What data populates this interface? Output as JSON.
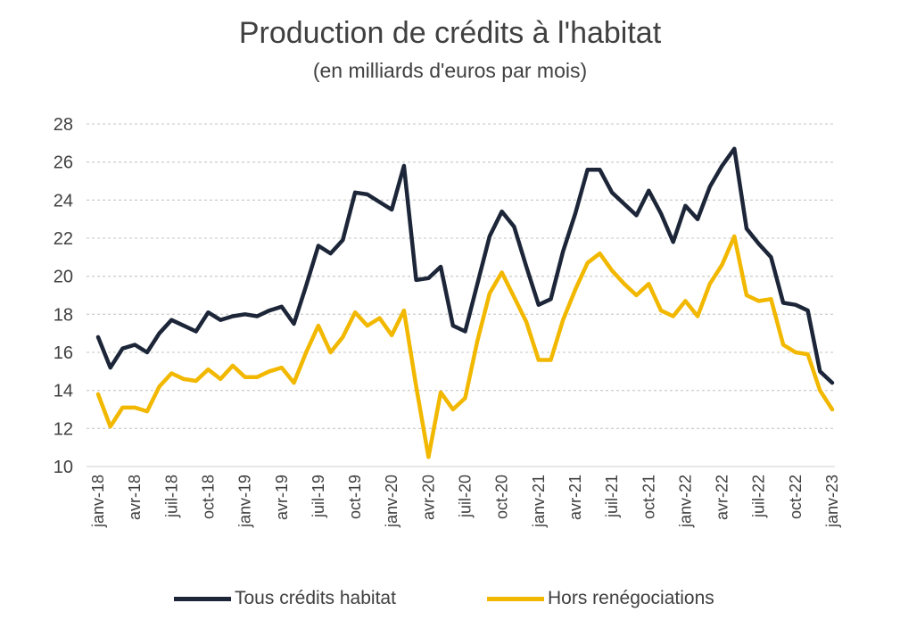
{
  "chart_data": {
    "type": "line",
    "title": "Production de crédits à l'habitat",
    "subtitle": "(en milliards d'euros par mois)",
    "xlabel": "",
    "ylabel": "",
    "ylim": [
      10,
      28
    ],
    "yticks": [
      10,
      12,
      14,
      16,
      18,
      20,
      22,
      24,
      26,
      28
    ],
    "grid": "horizontal dotted",
    "legend_position": "bottom",
    "x_tick_labels": [
      {
        "index": 0,
        "label": "janv-18"
      },
      {
        "index": 3,
        "label": "avr-18"
      },
      {
        "index": 6,
        "label": "juil-18"
      },
      {
        "index": 9,
        "label": "oct-18"
      },
      {
        "index": 12,
        "label": "janv-19"
      },
      {
        "index": 15,
        "label": "avr-19"
      },
      {
        "index": 18,
        "label": "juil-19"
      },
      {
        "index": 21,
        "label": "oct-19"
      },
      {
        "index": 24,
        "label": "janv-20"
      },
      {
        "index": 27,
        "label": "avr-20"
      },
      {
        "index": 30,
        "label": "juil-20"
      },
      {
        "index": 33,
        "label": "oct-20"
      },
      {
        "index": 36,
        "label": "janv-21"
      },
      {
        "index": 39,
        "label": "avr-21"
      },
      {
        "index": 42,
        "label": "juil-21"
      },
      {
        "index": 45,
        "label": "oct-21"
      },
      {
        "index": 48,
        "label": "janv-22"
      },
      {
        "index": 51,
        "label": "avr-22"
      },
      {
        "index": 54,
        "label": "juil-22"
      },
      {
        "index": 57,
        "label": "oct-22"
      },
      {
        "index": 60,
        "label": "janv-23"
      }
    ],
    "series": [
      {
        "name": "Tous crédits habitat",
        "color": "#1c2638",
        "values": [
          16.8,
          15.2,
          16.2,
          16.4,
          16.0,
          17.0,
          17.7,
          17.4,
          17.1,
          18.1,
          17.7,
          17.9,
          18.0,
          17.9,
          18.2,
          18.4,
          17.5,
          19.5,
          21.6,
          21.2,
          21.9,
          24.4,
          24.3,
          23.9,
          23.5,
          25.8,
          19.8,
          19.9,
          20.5,
          17.4,
          17.1,
          19.6,
          22.1,
          23.4,
          22.6,
          20.5,
          18.5,
          18.8,
          21.3,
          23.3,
          25.6,
          25.6,
          24.4,
          23.8,
          23.2,
          24.5,
          23.3,
          21.8,
          23.7,
          23.0,
          24.7,
          25.8,
          26.7,
          22.5,
          21.7,
          21.0,
          18.6,
          18.5,
          18.2,
          15.0,
          14.4
        ]
      },
      {
        "name": "Hors renégociations",
        "color": "#f2b800",
        "values": [
          13.8,
          12.1,
          13.1,
          13.1,
          12.9,
          14.2,
          14.9,
          14.6,
          14.5,
          15.1,
          14.6,
          15.3,
          14.7,
          14.7,
          15.0,
          15.2,
          14.4,
          16.0,
          17.4,
          16.0,
          16.8,
          18.1,
          17.4,
          17.8,
          16.9,
          18.2,
          14.2,
          10.5,
          13.9,
          13.0,
          13.6,
          16.6,
          19.1,
          20.2,
          18.9,
          17.6,
          15.6,
          15.6,
          17.7,
          19.3,
          20.7,
          21.2,
          20.3,
          19.6,
          19.0,
          19.6,
          18.2,
          17.9,
          18.7,
          17.9,
          19.6,
          20.6,
          22.1,
          19.0,
          18.7,
          18.8,
          16.4,
          16.0,
          15.9,
          14.0,
          13.0
        ]
      }
    ]
  }
}
